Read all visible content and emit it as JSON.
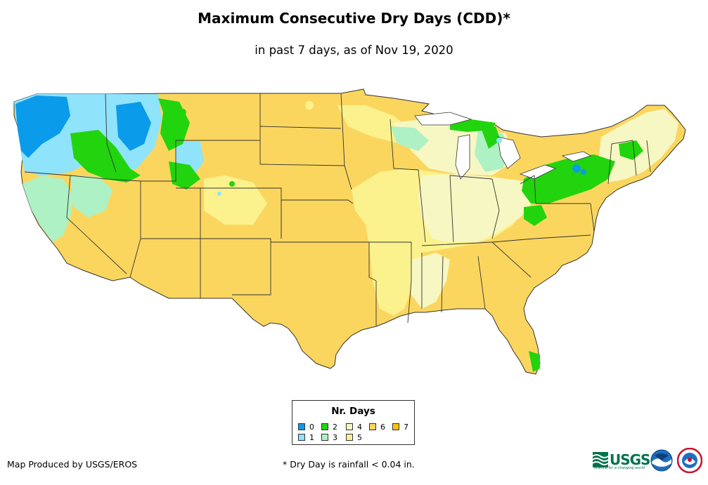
{
  "header": {
    "title": "Maximum Consecutive Dry Days (CDD)*",
    "subtitle": "in past 7 days, as of Nov 19, 2020"
  },
  "legend": {
    "title": "Nr. Days",
    "items": [
      {
        "label": "0",
        "color": "#0a9bea"
      },
      {
        "label": "1",
        "color": "#8fe3fb"
      },
      {
        "label": "2",
        "color": "#22d40e"
      },
      {
        "label": "3",
        "color": "#aef1c4"
      },
      {
        "label": "4",
        "color": "#f7f7c3"
      },
      {
        "label": "5",
        "color": "#fbf28d"
      },
      {
        "label": "6",
        "color": "#fbd65e"
      },
      {
        "label": "7",
        "color": "#fbc404"
      }
    ]
  },
  "footer": {
    "credit": "Map Produced by USGS/EROS",
    "footnote": "* Dry Day is rainfall < 0.04 in."
  },
  "logos": {
    "usgs": "USGS",
    "usgs_tagline": "science for a changing world",
    "noaa": "noaa"
  }
}
